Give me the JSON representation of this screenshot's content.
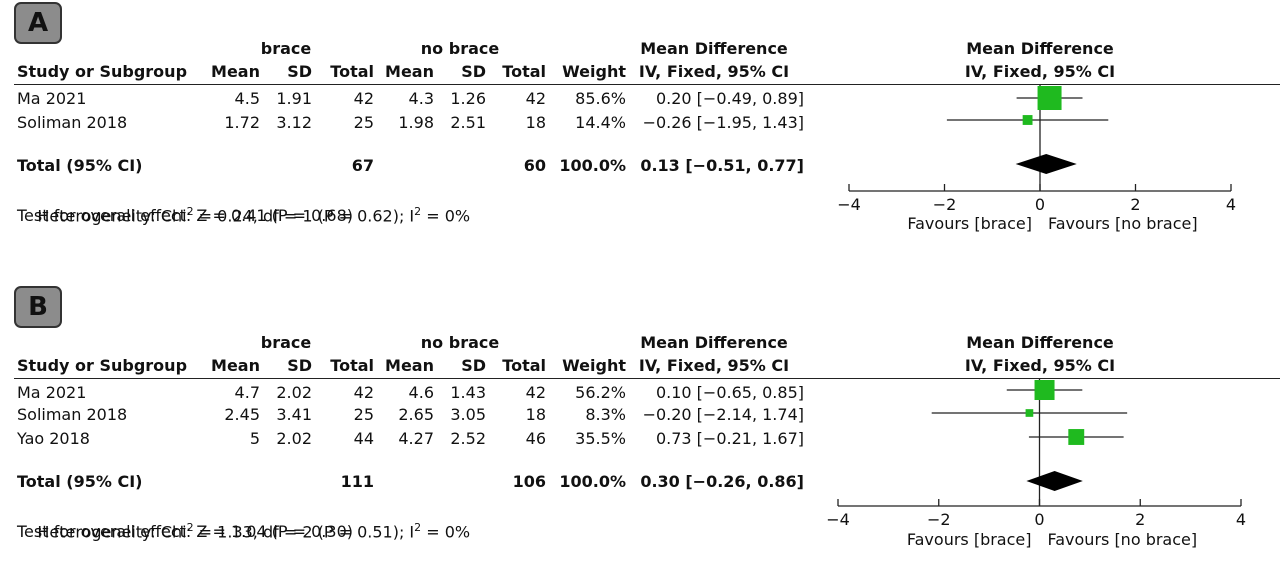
{
  "headers": {
    "study": "Study or Subgroup",
    "group1": "brace",
    "group2": "no brace",
    "mean": "Mean",
    "sd": "SD",
    "total": "Total",
    "weight": "Weight",
    "md_title": "Mean Difference",
    "md_sub": "IV, Fixed, 95% CI",
    "favours_left": "Favours [brace]",
    "favours_right": "Favours [no brace]"
  },
  "colors": {
    "square": "#1fba1f",
    "diamond": "#000000",
    "line": "#222222"
  },
  "panels": [
    {
      "label": "A",
      "studies": [
        {
          "name": "Ma 2021",
          "mean1": "4.5",
          "sd1": "1.91",
          "n1": "42",
          "mean2": "4.3",
          "sd2": "1.26",
          "n2": "42",
          "weight": "85.6%",
          "ci_text": "0.20 [−0.49, 0.89]"
        },
        {
          "name": "Soliman 2018",
          "mean1": "1.72",
          "sd1": "3.12",
          "n1": "25",
          "mean2": "1.98",
          "sd2": "2.51",
          "n2": "18",
          "weight": "14.4%",
          "ci_text": "−0.26 [−1.95, 1.43]"
        }
      ],
      "total": {
        "label": "Total (95% CI)",
        "n1": "67",
        "n2": "60",
        "weight": "100.0%",
        "ci_text": "0.13 [−0.51, 0.77]"
      },
      "heterogeneity": {
        "prefix": "Heterogeneity: Chi",
        "mid": " = 0.24, df = 1 (P = 0.62); I",
        "suffix": " = 0%"
      },
      "overall": "Test for overall effect: Z = 0.41 (P = 0.68)"
    },
    {
      "label": "B",
      "studies": [
        {
          "name": "Ma 2021",
          "mean1": "4.7",
          "sd1": "2.02",
          "n1": "42",
          "mean2": "4.6",
          "sd2": "1.43",
          "n2": "42",
          "weight": "56.2%",
          "ci_text": "0.10 [−0.65, 0.85]"
        },
        {
          "name": "Soliman 2018",
          "mean1": "2.45",
          "sd1": "3.41",
          "n1": "25",
          "mean2": "2.65",
          "sd2": "3.05",
          "n2": "18",
          "weight": "8.3%",
          "ci_text": "−0.20 [−2.14, 1.74]"
        },
        {
          "name": "Yao 2018",
          "mean1": "5",
          "sd1": "2.02",
          "n1": "44",
          "mean2": "4.27",
          "sd2": "2.52",
          "n2": "46",
          "weight": "35.5%",
          "ci_text": "0.73 [−0.21, 1.67]"
        }
      ],
      "total": {
        "label": "Total (95% CI)",
        "n1": "111",
        "n2": "106",
        "weight": "100.0%",
        "ci_text": "0.30 [−0.26, 0.86]"
      },
      "heterogeneity": {
        "prefix": "Heterogeneity: Chi",
        "mid": " = 1.33, df = 2 (P = 0.51); I",
        "suffix": " = 0%"
      },
      "overall": "Test for overall effect: Z = 1.04 (P = 0.30)"
    }
  ],
  "chart_data": [
    {
      "type": "forest",
      "xlim": [
        -4,
        4
      ],
      "ticks": [
        -4,
        -2,
        0,
        2,
        4
      ],
      "tick_labels": [
        "−4",
        "−2",
        "0",
        "2",
        "4"
      ],
      "xlabel_left": "Favours [brace]",
      "xlabel_right": "Favours [no brace]",
      "studies": [
        {
          "name": "Ma 2021",
          "md": 0.2,
          "lo": -0.49,
          "hi": 0.89,
          "weight": 85.6
        },
        {
          "name": "Soliman 2018",
          "md": -0.26,
          "lo": -1.95,
          "hi": 1.43,
          "weight": 14.4
        }
      ],
      "pooled": {
        "md": 0.13,
        "lo": -0.51,
        "hi": 0.77
      }
    },
    {
      "type": "forest",
      "xlim": [
        -4,
        4
      ],
      "ticks": [
        -4,
        -2,
        0,
        2,
        4
      ],
      "tick_labels": [
        "−4",
        "−2",
        "0",
        "2",
        "4"
      ],
      "xlabel_left": "Favours [brace]",
      "xlabel_right": "Favours [no brace]",
      "studies": [
        {
          "name": "Ma 2021",
          "md": 0.1,
          "lo": -0.65,
          "hi": 0.85,
          "weight": 56.2
        },
        {
          "name": "Soliman 2018",
          "md": -0.2,
          "lo": -2.14,
          "hi": 1.74,
          "weight": 8.3
        },
        {
          "name": "Yao 2018",
          "md": 0.73,
          "lo": -0.21,
          "hi": 1.67,
          "weight": 35.5
        }
      ],
      "pooled": {
        "md": 0.3,
        "lo": -0.26,
        "hi": 0.86
      }
    }
  ]
}
